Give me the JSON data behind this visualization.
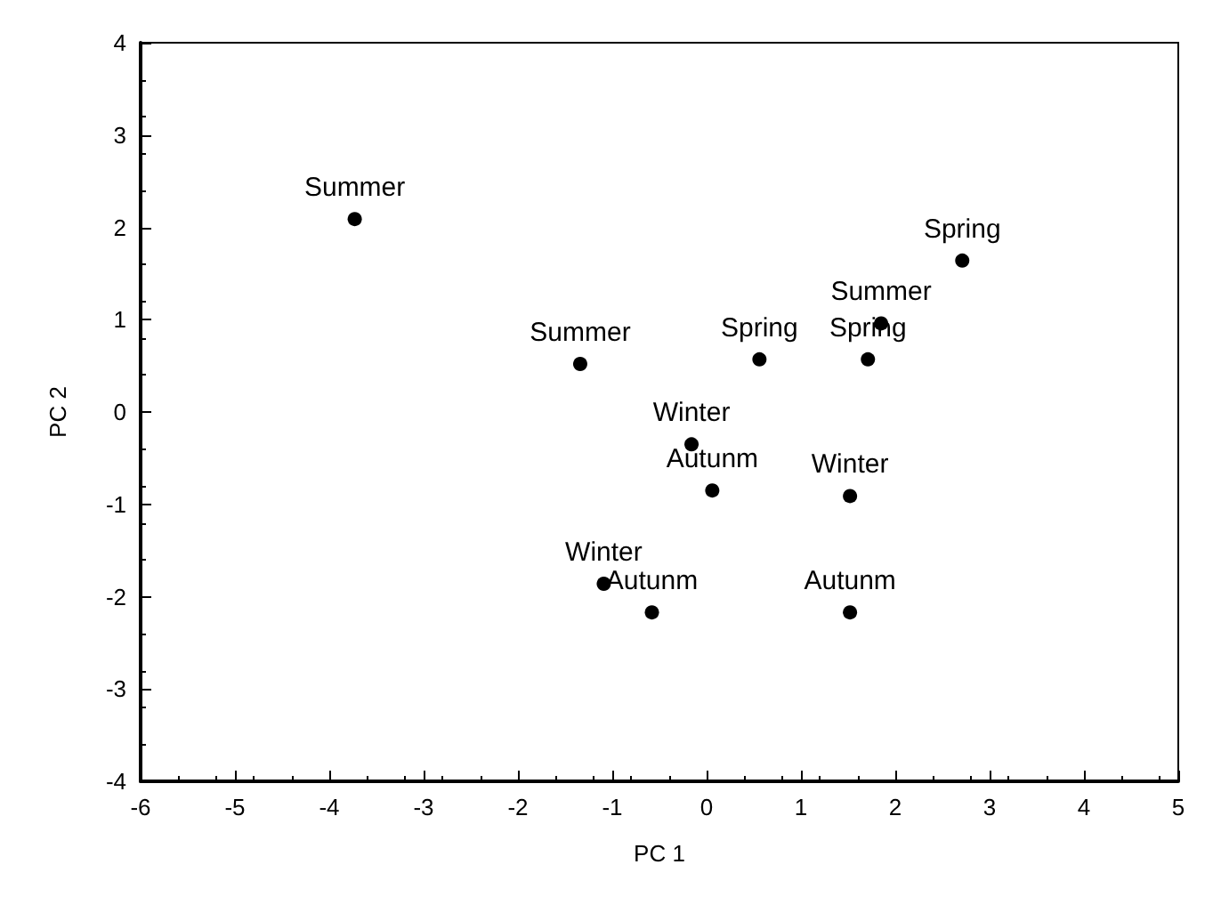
{
  "chart_data": {
    "type": "scatter",
    "xlabel": "PC 1",
    "ylabel": "PC 2",
    "x": [
      -3.73,
      2.71,
      1.85,
      -1.34,
      0.56,
      1.71,
      -0.16,
      0.06,
      1.52,
      -1.09,
      -0.58,
      1.52
    ],
    "series": [
      {
        "color": "#000000",
        "values": [
          2.09,
          1.64,
          0.96,
          0.52,
          0.57,
          0.57,
          -0.35,
          -0.85,
          -0.91,
          -1.86,
          -2.17,
          -2.17
        ],
        "value_labels": [
          "Summer",
          "Spring",
          "Summer",
          "Summer",
          "Spring",
          "Spring",
          "Winter",
          "Autunm",
          "Winter",
          "Winter",
          "Autunm",
          "Autunm"
        ]
      }
    ],
    "xlim": [
      -6,
      5
    ],
    "xticks": [
      -6,
      -5,
      -4,
      -3,
      -2,
      -1,
      0,
      1,
      2,
      3,
      4,
      5
    ],
    "ylim": [
      -4,
      4
    ],
    "yticks": [
      -4,
      -3,
      -2,
      -1,
      0,
      1,
      2,
      3,
      4
    ],
    "grid": false,
    "marker": "circle"
  }
}
